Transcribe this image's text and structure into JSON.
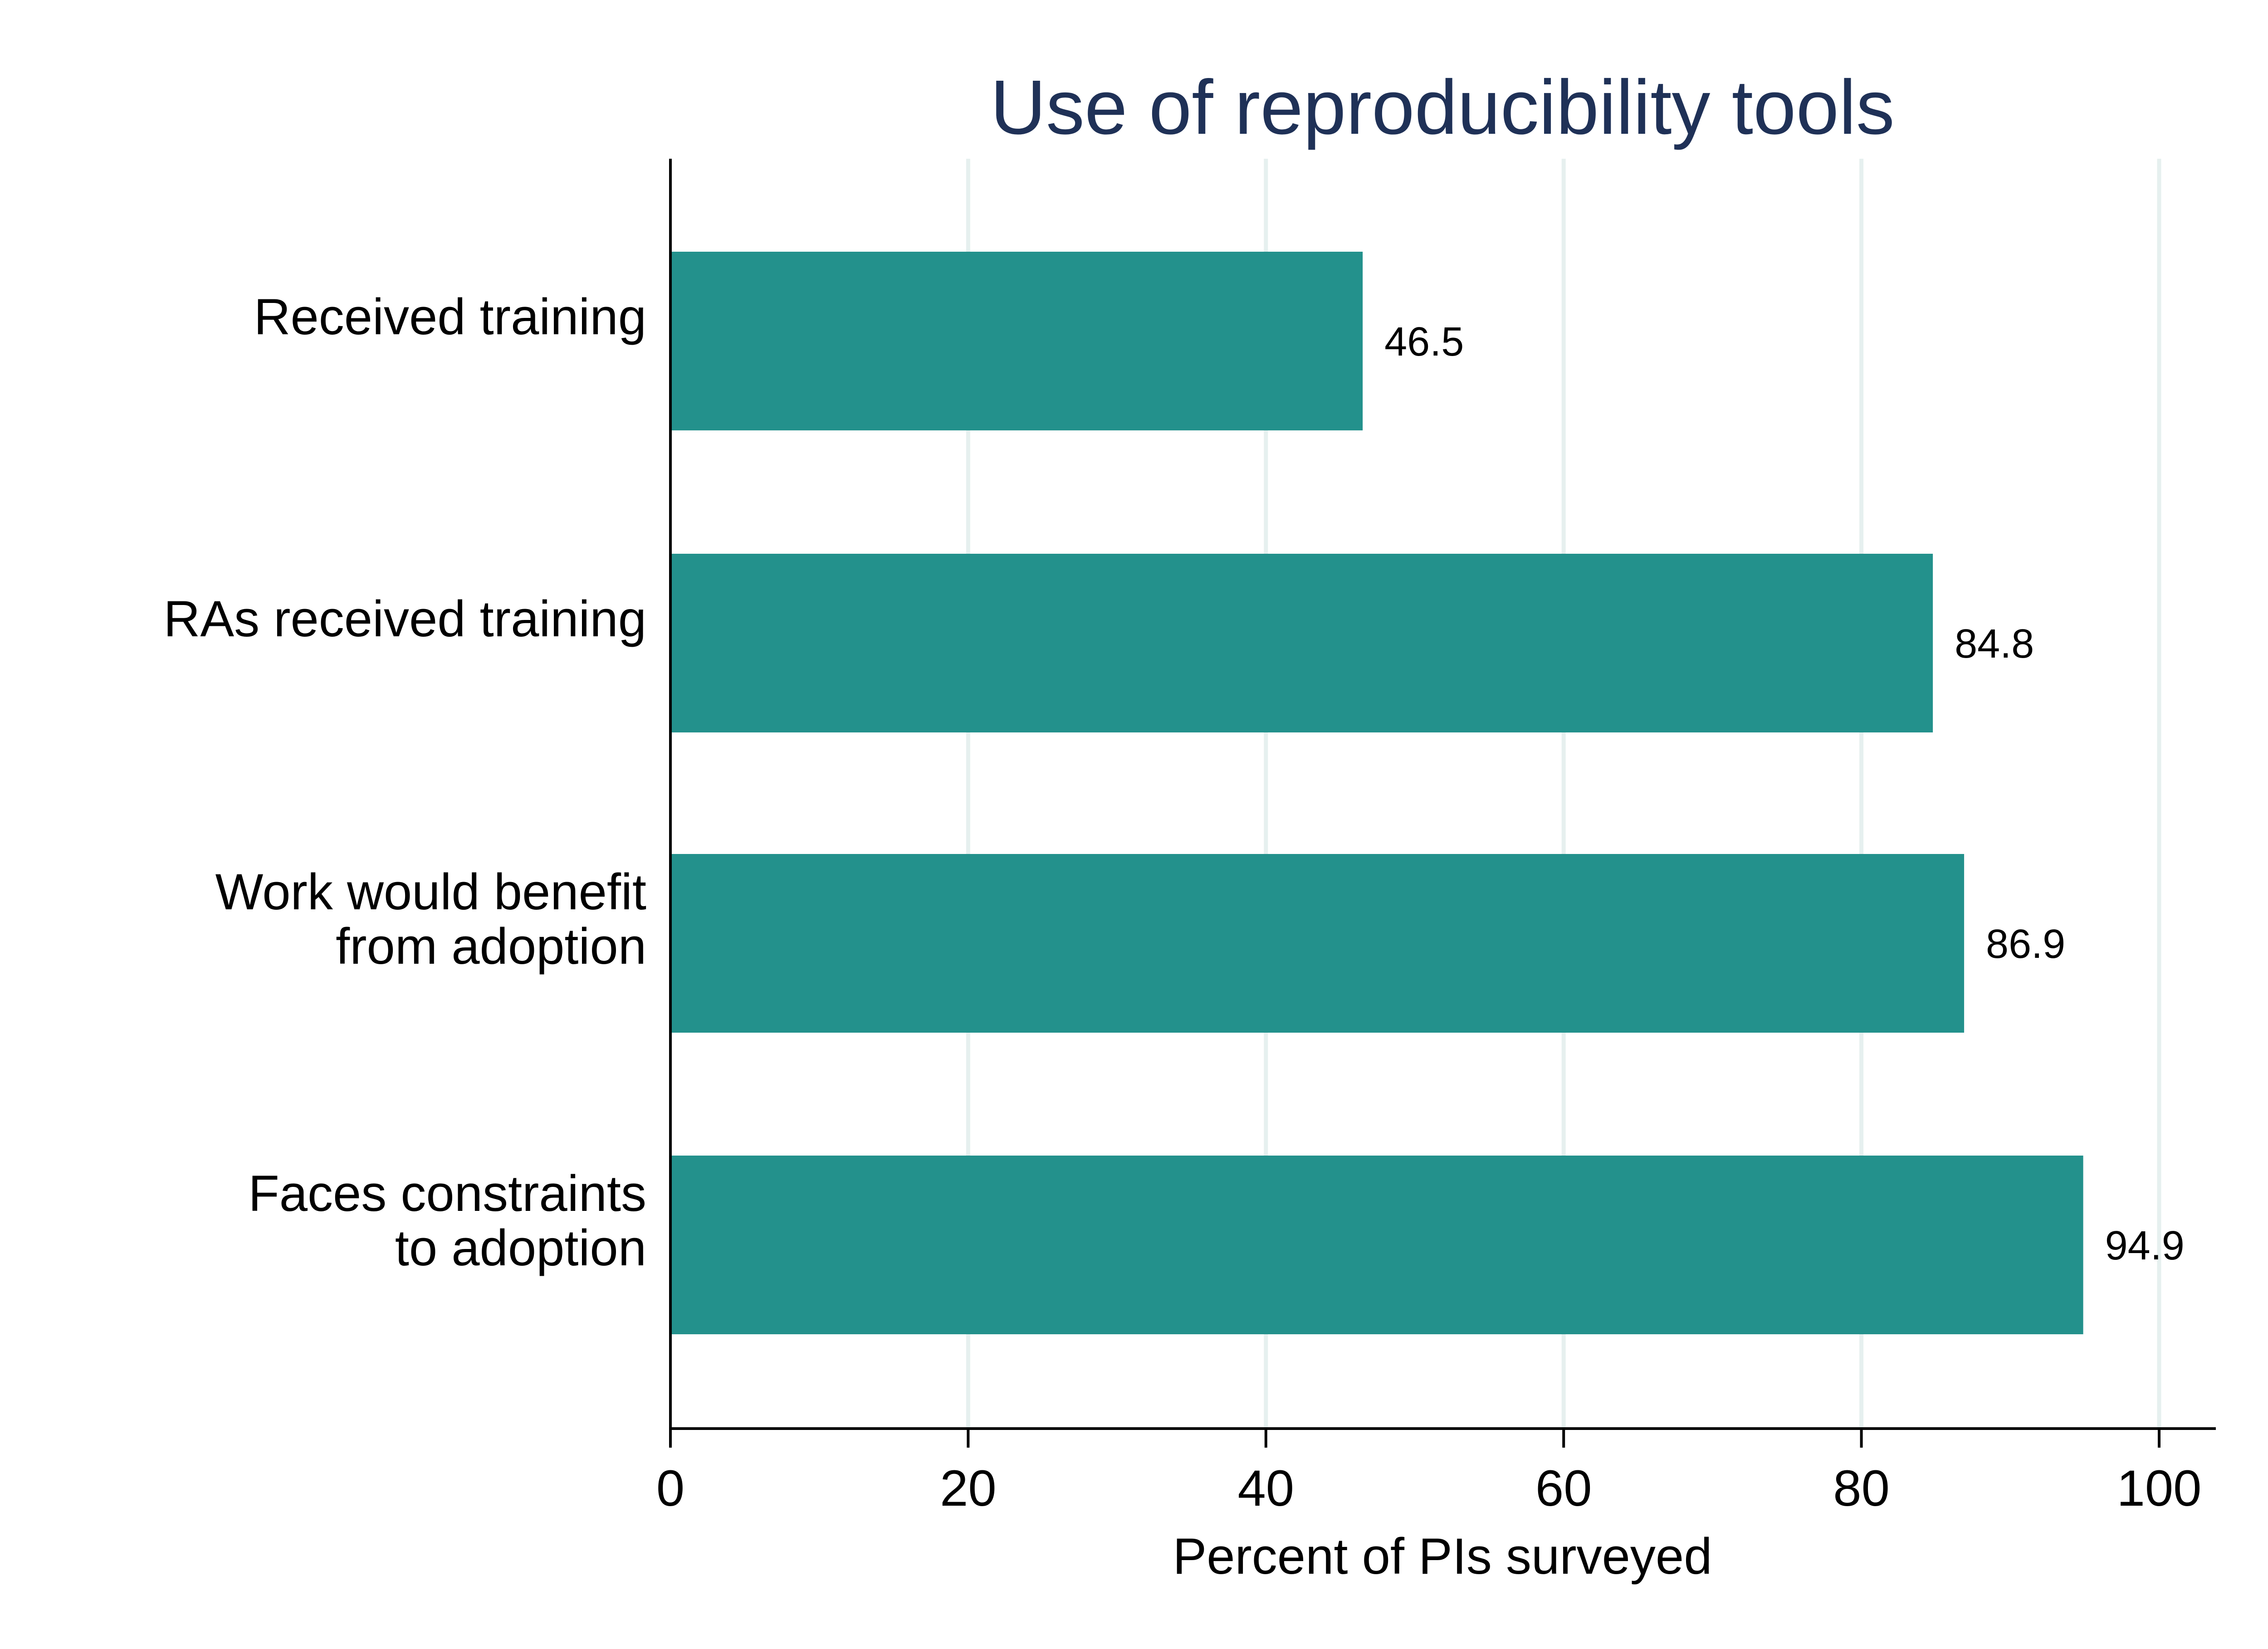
{
  "chart_data": {
    "type": "bar",
    "orientation": "horizontal",
    "title": "Use of reproducibility tools",
    "xlabel": "Percent of PIs surveyed",
    "ylabel": "",
    "xlim": [
      0,
      104
    ],
    "xticks": [
      0,
      20,
      40,
      60,
      80,
      100
    ],
    "grid": "vertical",
    "categories": [
      [
        "Received training"
      ],
      [
        "RAs received training"
      ],
      [
        "Work would benefit",
        "from adoption"
      ],
      [
        "Faces constraints",
        "to adoption"
      ]
    ],
    "values": [
      46.5,
      84.8,
      86.9,
      94.9
    ],
    "value_labels": [
      "46.5",
      "84.8",
      "86.9",
      "94.9"
    ],
    "colors": {
      "bar": "#23918c",
      "title": "#1f3157",
      "grid": "#e6f0ef",
      "axis": "#000000"
    }
  }
}
